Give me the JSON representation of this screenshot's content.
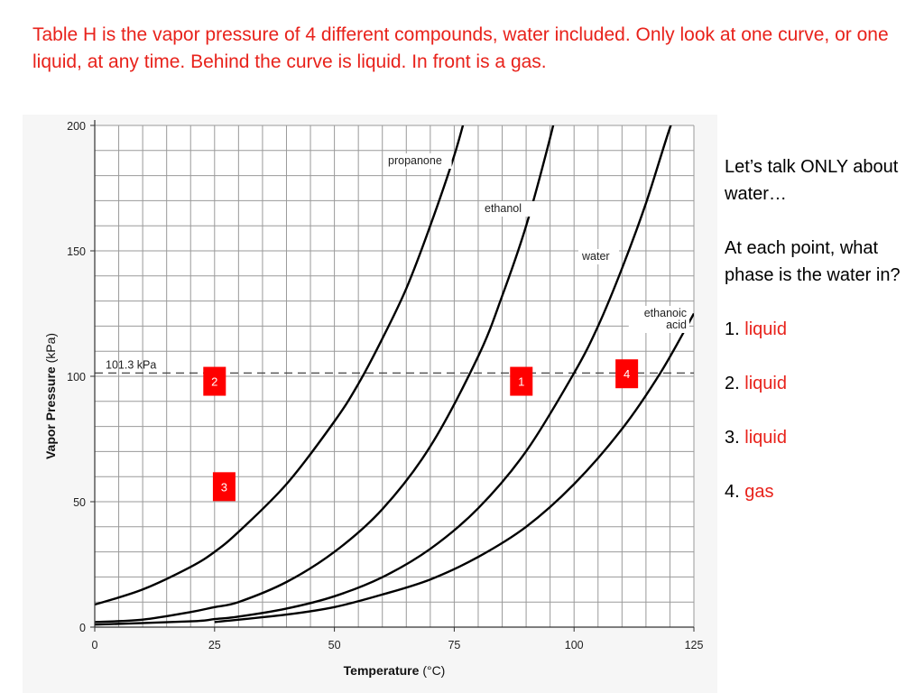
{
  "title": "Table H is the vapor pressure of 4 different compounds, water included.  Only look at one curve, or one liquid, at any time.  Behind the curve is liquid.  In front is a gas.",
  "side_panel": {
    "intro": "Let’s talk ONLY about water…",
    "question": "At each point, what phase is the water in?",
    "answers": [
      {
        "number": "1.",
        "answer": "liquid"
      },
      {
        "number": "2.",
        "answer": "liquid"
      },
      {
        "number": "3.",
        "answer": "liquid"
      },
      {
        "number": "4.",
        "answer": "gas"
      }
    ]
  },
  "colors": {
    "title": "#e8221b",
    "answer": "#e8221b",
    "marker_fill": "#ff0000",
    "grid": "#9a9a9a",
    "curve": "#000000"
  },
  "chart_data": {
    "type": "line",
    "xlabel_bold": "Temperature",
    "xlabel_unit": "(°C)",
    "ylabel_bold": "Vapor Pressure",
    "ylabel_unit": "(kPa)",
    "xlim": [
      0,
      125
    ],
    "ylim": [
      0,
      200
    ],
    "x_ticks": [
      0,
      25,
      50,
      75,
      100,
      125
    ],
    "y_ticks": [
      0,
      50,
      100,
      150,
      200
    ],
    "grid": "on",
    "reference_line": {
      "y": 101.3,
      "label": "101.3 kPa"
    },
    "series": [
      {
        "name": "propanone",
        "points": [
          [
            0,
            9
          ],
          [
            10,
            15
          ],
          [
            20,
            24
          ],
          [
            25,
            30
          ],
          [
            30,
            38
          ],
          [
            40,
            57
          ],
          [
            50,
            82
          ],
          [
            55,
            97
          ],
          [
            60,
            115
          ],
          [
            65,
            135
          ],
          [
            70,
            160
          ],
          [
            75,
            188
          ],
          [
            77.5,
            205
          ]
        ]
      },
      {
        "name": "ethanol",
        "points": [
          [
            0,
            2
          ],
          [
            10,
            3
          ],
          [
            20,
            6
          ],
          [
            25,
            8
          ],
          [
            30,
            10
          ],
          [
            40,
            18
          ],
          [
            50,
            30
          ],
          [
            60,
            47
          ],
          [
            70,
            72
          ],
          [
            80,
            108
          ],
          [
            85,
            132
          ],
          [
            90,
            160
          ],
          [
            95,
            195
          ],
          [
            96.5,
            208
          ]
        ]
      },
      {
        "name": "water",
        "points": [
          [
            0,
            1
          ],
          [
            20,
            2.3
          ],
          [
            25,
            3.2
          ],
          [
            30,
            4.2
          ],
          [
            40,
            7.4
          ],
          [
            50,
            12.3
          ],
          [
            60,
            19.9
          ],
          [
            70,
            31.2
          ],
          [
            80,
            47.4
          ],
          [
            90,
            70.1
          ],
          [
            100,
            101.3
          ],
          [
            105,
            120
          ],
          [
            110,
            143
          ],
          [
            115,
            169
          ],
          [
            120,
            199
          ],
          [
            122.5,
            210
          ]
        ]
      },
      {
        "name": "ethanoic\nacid",
        "points": [
          [
            25,
            2
          ],
          [
            40,
            5
          ],
          [
            50,
            8
          ],
          [
            60,
            13
          ],
          [
            70,
            19
          ],
          [
            80,
            28
          ],
          [
            90,
            40
          ],
          [
            100,
            57
          ],
          [
            110,
            79
          ],
          [
            118,
            101.3
          ],
          [
            125,
            125
          ]
        ]
      }
    ],
    "markers": [
      {
        "label": "2",
        "x": 25,
        "y": 98
      },
      {
        "label": "1",
        "x": 89,
        "y": 98
      },
      {
        "label": "4",
        "x": 111,
        "y": 101
      },
      {
        "label": "3",
        "x": 27,
        "y": 56
      }
    ]
  }
}
